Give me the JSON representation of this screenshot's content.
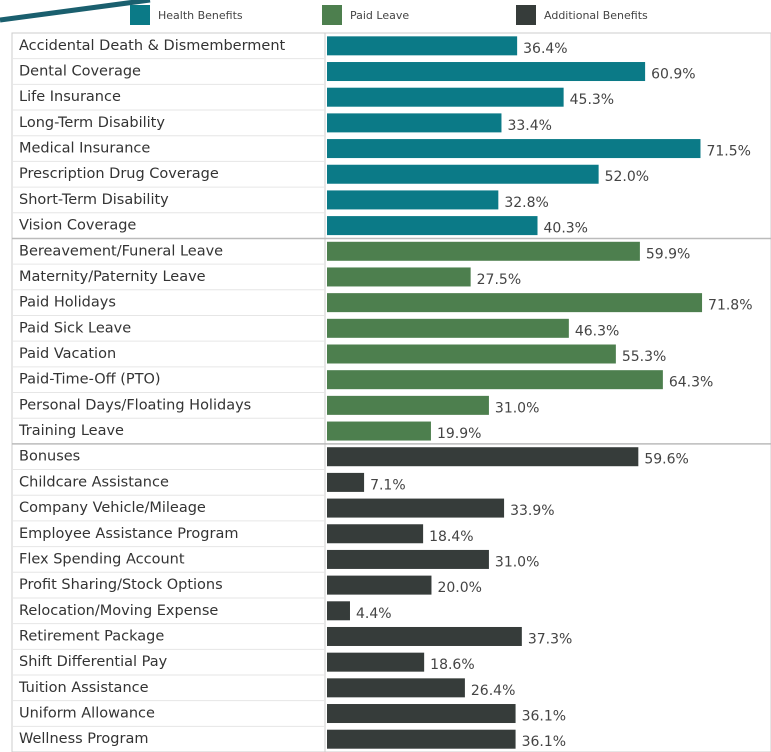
{
  "chart_data": {
    "type": "bar",
    "orientation": "horizontal",
    "xlim": [
      0,
      85
    ],
    "series": [
      {
        "name": "Health Benefits",
        "color": "#0b7a87",
        "categories": [
          "Accidental Death & Dismemberment",
          "Dental Coverage",
          "Life Insurance",
          "Long-Term Disability",
          "Medical Insurance",
          "Prescription Drug Coverage",
          "Short-Term Disability",
          "Vision Coverage"
        ],
        "values": [
          36.4,
          60.9,
          45.3,
          33.4,
          71.5,
          52.0,
          32.8,
          40.3
        ],
        "value_labels": [
          "36.4%",
          "60.9%",
          "45.3%",
          "33.4%",
          "71.5%",
          "52.0%",
          "32.8%",
          "40.3%"
        ]
      },
      {
        "name": "Paid Leave",
        "color": "#4d7f4e",
        "categories": [
          "Bereavement/Funeral Leave",
          "Maternity/Paternity Leave",
          "Paid Holidays",
          "Paid Sick Leave",
          "Paid Vacation",
          "Paid-Time-Off (PTO)",
          "Personal Days/Floating Holidays",
          "Training Leave"
        ],
        "values": [
          59.9,
          27.5,
          71.8,
          46.3,
          55.3,
          64.3,
          31.0,
          19.9
        ],
        "value_labels": [
          "59.9%",
          "27.5%",
          "71.8%",
          "46.3%",
          "55.3%",
          "64.3%",
          "31.0%",
          "19.9%"
        ]
      },
      {
        "name": "Additional Benefits",
        "color": "#363c3a",
        "categories": [
          "Bonuses",
          "Childcare Assistance",
          "Company Vehicle/Mileage",
          "Employee Assistance Program",
          "Flex Spending Account",
          "Profit Sharing/Stock Options",
          "Relocation/Moving Expense",
          "Retirement Package",
          "Shift Differential Pay",
          "Tuition Assistance",
          "Uniform Allowance",
          "Wellness Program"
        ],
        "values": [
          59.6,
          7.1,
          33.9,
          18.4,
          31.0,
          20.0,
          4.4,
          37.3,
          18.6,
          26.4,
          36.1,
          36.1
        ],
        "value_labels": [
          "59.6%",
          "7.1%",
          "33.9%",
          "18.4%",
          "31.0%",
          "20.0%",
          "4.4%",
          "37.3%",
          "18.6%",
          "26.4%",
          "36.1%",
          "36.1%"
        ]
      }
    ]
  }
}
